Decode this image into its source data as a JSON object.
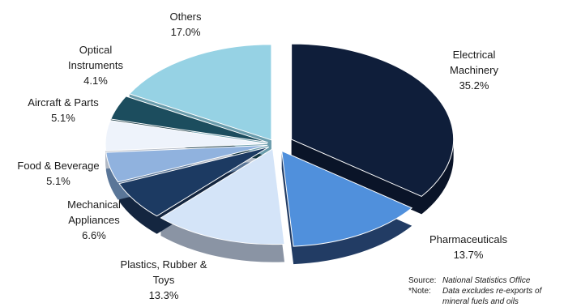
{
  "chart_data": {
    "type": "pie",
    "style": "3d-exploded",
    "title": "",
    "slices": [
      {
        "label_lines": [
          "Electrical",
          "Machinery"
        ],
        "value": 35.2,
        "value_text": "35.2%",
        "color": "#0f1e3a",
        "side": "#0a1428"
      },
      {
        "label_lines": [
          "Pharmaceuticals"
        ],
        "value": 13.7,
        "value_text": "13.7%",
        "color": "#5090dc",
        "side": "#223c64"
      },
      {
        "label_lines": [
          "Plastics, Rubber &",
          "Toys"
        ],
        "value": 13.3,
        "value_text": "13.3%",
        "color": "#d4e4f8",
        "side": "#8a94a4"
      },
      {
        "label_lines": [
          "Mechanical",
          "Appliances"
        ],
        "value": 6.6,
        "value_text": "6.6%",
        "color": "#1c3a62",
        "side": "#142640"
      },
      {
        "label_lines": [
          "Food & Beverage"
        ],
        "value": 5.1,
        "value_text": "5.1%",
        "color": "#90b2de",
        "side": "#5a7698"
      },
      {
        "label_lines": [
          "Aircraft & Parts"
        ],
        "value": 5.1,
        "value_text": "5.1%",
        "color": "#eef3fb",
        "side": "#b0b8c4"
      },
      {
        "label_lines": [
          "Optical",
          "Instruments"
        ],
        "value": 4.1,
        "value_text": "4.1%",
        "color": "#1c4d5e",
        "side": "#123440"
      },
      {
        "label_lines": [
          "Others"
        ],
        "value": 17.0,
        "value_text": "17.0%",
        "color": "#96d2e4",
        "side": "#6a9cac"
      }
    ]
  },
  "footnote": {
    "source_label": "Source:",
    "source_text": "National Statistics Office",
    "note_label": "*Note:",
    "note_line1": "Data excludes re-exports of",
    "note_line2": "mineral fuels and oils"
  }
}
